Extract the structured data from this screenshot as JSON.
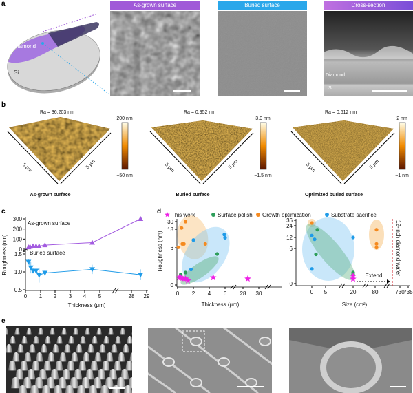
{
  "panel_labels": [
    "a",
    "b",
    "c",
    "d",
    "e"
  ],
  "panel_a": {
    "schematic": {
      "layer_top": "Diamond",
      "layer_bottom": "Si"
    },
    "images": [
      {
        "header": "As-grown surface",
        "header_color": "#a05ad8"
      },
      {
        "header": "Buried surface",
        "header_color": "#2aa7ea"
      },
      {
        "header": "Cross-section",
        "header_color": "#9b5de0",
        "labels": [
          "Diamond",
          "Si"
        ]
      }
    ]
  },
  "panel_b": {
    "maps": [
      {
        "ra": "Ra = 36.203 nm",
        "title": "As-grown surface",
        "axis_x": "5 μm",
        "axis_y": "5 μm",
        "cbar_max": "200 nm",
        "cbar_min": "−50 nm"
      },
      {
        "ra": "Ra = 0.952 nm",
        "title": "Buried surface",
        "axis_x": "5 μm",
        "axis_y": "5 μm",
        "cbar_max": "3.0 nm",
        "cbar_min": "−1.5 nm"
      },
      {
        "ra": "Ra = 0.612 nm",
        "title": "Optimized buried surface",
        "axis_x": "5 μm",
        "axis_y": "5 μm",
        "cbar_max": "2 nm",
        "cbar_min": "−1 nm"
      }
    ]
  },
  "chart_data": [
    {
      "type": "line",
      "panel": "c",
      "xlabel": "Thickness (μm)",
      "ylabel": "Roughness (nm)",
      "x_ticks": [
        "0",
        "1",
        "2",
        "3",
        "4",
        "5",
        "28",
        "29"
      ],
      "y_ticks_upper": [
        "0",
        "100",
        "200",
        "300"
      ],
      "y_ticks_lower": [
        "0.5",
        "1.0",
        "1.5"
      ],
      "axis_break": true,
      "series": [
        {
          "name": "As-grown surface",
          "color": "#a35be0",
          "marker": "triangle-up",
          "x": [
            0.2,
            0.3,
            0.5,
            0.7,
            0.9,
            1.3,
            4.5,
            28.6
          ],
          "y": [
            20,
            25,
            30,
            30,
            30,
            40,
            65,
            300
          ]
        },
        {
          "name": "Buried surface",
          "color": "#1f9be8",
          "marker": "triangle-down",
          "x": [
            0.2,
            0.35,
            0.5,
            0.7,
            0.9,
            1.3,
            4.5,
            28.6
          ],
          "y": [
            1.28,
            1.12,
            1.03,
            1.03,
            0.91,
            0.97,
            1.07,
            0.92
          ],
          "error": [
            0.08,
            0.16,
            0.07,
            0.05,
            0.21,
            0.08,
            0.13,
            0.15
          ]
        }
      ]
    },
    {
      "type": "scatter",
      "panel": "d-left",
      "xlabel": "Thickness (μm)",
      "ylabel": "Roughness (nm)",
      "x_ticks": [
        "0",
        "2",
        "4",
        "6",
        "28",
        "30"
      ],
      "y_ticks": [
        "0",
        "6",
        "18",
        "30"
      ],
      "legend": [
        "This work",
        "Surface polish",
        "Growth optimization",
        "Substrate sacrifice"
      ],
      "legend_position": "top",
      "series": [
        {
          "name": "This work",
          "color": "#ee22e6",
          "marker": "star",
          "x": [
            0.2,
            0.4,
            0.6,
            0.8,
            1.0,
            1.3,
            4.5,
            28.6
          ],
          "y": [
            1.2,
            1.2,
            1.1,
            1.0,
            1.0,
            0.7,
            1.2,
            1.0
          ]
        },
        {
          "name": "Surface polish",
          "color": "#2e9e5b",
          "marker": "circle",
          "x": [
            0.4,
            1.0,
            5.0
          ],
          "y": [
            1.7,
            2.0,
            5.0
          ]
        },
        {
          "name": "Growth optimization",
          "color": "#f58a1f",
          "marker": "circle",
          "x": [
            0.1,
            0.5,
            1.0,
            0.6,
            0.8,
            3.5
          ],
          "y": [
            6.3,
            20,
            30,
            8.5,
            8.5,
            8.5
          ]
        },
        {
          "name": "Substrate sacrifice",
          "color": "#1f9be8",
          "marker": "circle",
          "x": [
            2.0,
            1.7,
            5.9,
            6.0
          ],
          "y": [
            11,
            2.5,
            14.5,
            12.5
          ]
        }
      ]
    },
    {
      "type": "scatter",
      "panel": "d-right",
      "xlabel": "Size (cm²)",
      "ylabel": "",
      "x_ticks": [
        "0",
        "5",
        "20",
        "80",
        "730",
        "735"
      ],
      "y_ticks": [
        "0",
        "6",
        "12",
        "24",
        "36"
      ],
      "annotations": [
        "Extend",
        "12-inch diamond wafer"
      ],
      "series": [
        {
          "name": "This work",
          "color": "#ee22e6",
          "marker": "star",
          "x": [
            20,
            20
          ],
          "y": [
            0.8,
            1.3
          ]
        },
        {
          "name": "Surface polish",
          "color": "#2e9e5b",
          "marker": "circle",
          "x": [
            2,
            1.5,
            20,
            20
          ],
          "y": [
            20,
            5,
            1.9,
            1.6
          ]
        },
        {
          "name": "Growth optimization",
          "color": "#f58a1f",
          "marker": "circle",
          "x": [
            0,
            85,
            85,
            85
          ],
          "y": [
            30,
            20,
            8.5,
            6.5
          ]
        },
        {
          "name": "Substrate sacrifice",
          "color": "#1f9be8",
          "marker": "circle",
          "x": [
            0,
            1,
            0,
            20
          ],
          "y": [
            14,
            11,
            2.5,
            12
          ]
        }
      ]
    }
  ]
}
